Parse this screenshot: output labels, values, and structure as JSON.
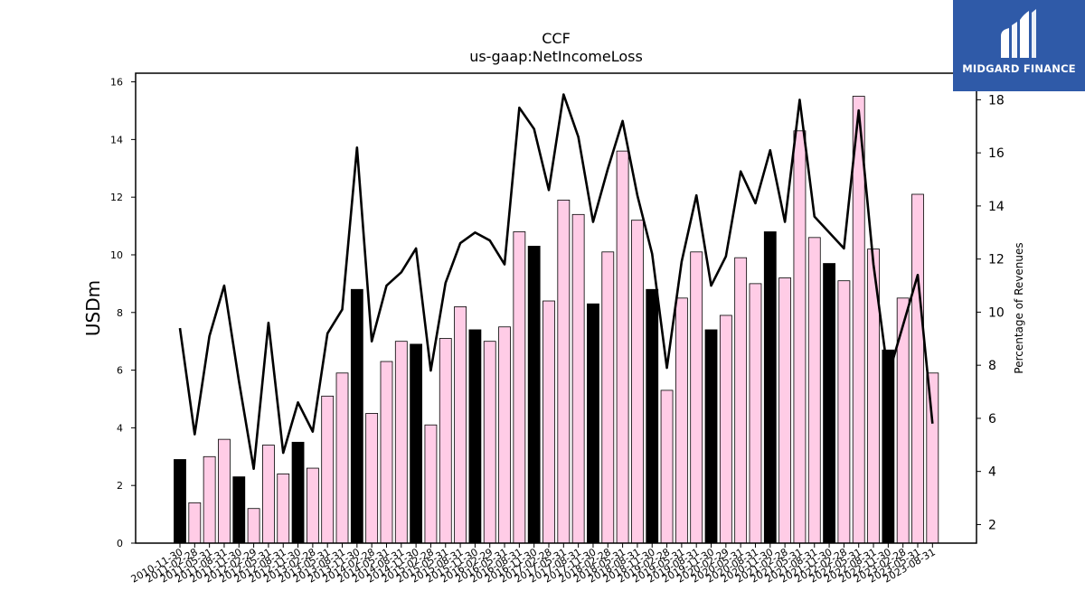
{
  "branding": {
    "logo_text": "MIDGARD FINANCE",
    "logo_bg": "#2f5aa8"
  },
  "chart_data": {
    "type": "bar",
    "title": "CCF",
    "subtitle": "us-gaap:NetIncomeLoss",
    "ylabel": "USDm",
    "y2label": "Percentage of Revenues",
    "ylim": [
      0,
      16.3
    ],
    "y2lim": [
      1.3,
      19.0
    ],
    "yticks": [
      0,
      2,
      4,
      6,
      8,
      10,
      12,
      14,
      16
    ],
    "y2ticks": [
      2,
      4,
      6,
      8,
      10,
      12,
      14,
      16,
      18
    ],
    "colors": {
      "fiscal_year_end_bar": "#000000",
      "quarter_bar": "#ffcce6",
      "line": "#000000"
    },
    "categories": [
      "2010-11-30",
      "2011-02-28",
      "2011-05-31",
      "2011-08-31",
      "2011-11-30",
      "2012-02-29",
      "2012-05-31",
      "2012-08-31",
      "2012-11-30",
      "2013-02-28",
      "2013-05-31",
      "2013-08-31",
      "2013-11-30",
      "2014-02-28",
      "2014-05-31",
      "2014-08-31",
      "2014-11-30",
      "2015-02-28",
      "2015-05-31",
      "2015-08-31",
      "2015-11-30",
      "2016-02-29",
      "2016-05-31",
      "2016-08-31",
      "2016-11-30",
      "2017-02-28",
      "2017-05-31",
      "2017-08-31",
      "2017-11-30",
      "2018-02-28",
      "2018-05-31",
      "2018-08-31",
      "2018-11-30",
      "2019-02-28",
      "2019-05-31",
      "2019-08-31",
      "2019-11-30",
      "2020-02-29",
      "2020-05-31",
      "2020-08-31",
      "2020-11-30",
      "2021-02-28",
      "2021-05-31",
      "2021-08-31",
      "2021-11-30",
      "2022-02-28",
      "2022-05-31",
      "2022-08-31",
      "2022-11-30",
      "2023-02-28",
      "2023-05-31",
      "2023-08-31"
    ],
    "series": [
      {
        "kind": "bar",
        "axis": "left",
        "values": [
          2.9,
          1.4,
          3.0,
          3.6,
          2.3,
          1.2,
          3.4,
          2.4,
          3.5,
          2.6,
          5.1,
          5.9,
          8.8,
          4.5,
          6.3,
          7.0,
          6.9,
          4.1,
          7.1,
          8.2,
          7.4,
          7.0,
          7.5,
          10.8,
          10.3,
          8.4,
          11.9,
          11.4,
          8.3,
          10.1,
          13.6,
          11.2,
          8.8,
          5.3,
          8.5,
          10.1,
          7.4,
          7.9,
          9.9,
          9.0,
          10.8,
          9.2,
          14.3,
          10.6,
          9.7,
          9.1,
          15.5,
          10.2,
          6.7,
          8.5,
          12.1,
          5.9
        ],
        "highlight": [
          true,
          false,
          false,
          false,
          true,
          false,
          false,
          false,
          true,
          false,
          false,
          false,
          true,
          false,
          false,
          false,
          true,
          false,
          false,
          false,
          true,
          false,
          false,
          false,
          true,
          false,
          false,
          false,
          true,
          false,
          false,
          false,
          true,
          false,
          false,
          false,
          true,
          false,
          false,
          false,
          true,
          false,
          false,
          false,
          true,
          false,
          false,
          false,
          true,
          false,
          false,
          false
        ]
      },
      {
        "kind": "line",
        "axis": "right",
        "values": [
          9.4,
          5.4,
          9.1,
          11.0,
          7.4,
          4.1,
          9.6,
          4.7,
          6.6,
          5.5,
          9.2,
          10.1,
          16.2,
          8.9,
          11.0,
          11.5,
          12.4,
          7.8,
          11.1,
          12.6,
          13.0,
          12.7,
          11.8,
          17.7,
          16.9,
          14.6,
          18.2,
          16.6,
          13.4,
          15.4,
          17.2,
          14.4,
          12.2,
          7.9,
          11.9,
          14.4,
          11.0,
          12.1,
          15.3,
          14.1,
          16.1,
          13.4,
          18.0,
          13.6,
          13.0,
          12.4,
          17.6,
          11.8,
          7.6,
          9.5,
          11.4,
          5.8
        ]
      }
    ]
  }
}
